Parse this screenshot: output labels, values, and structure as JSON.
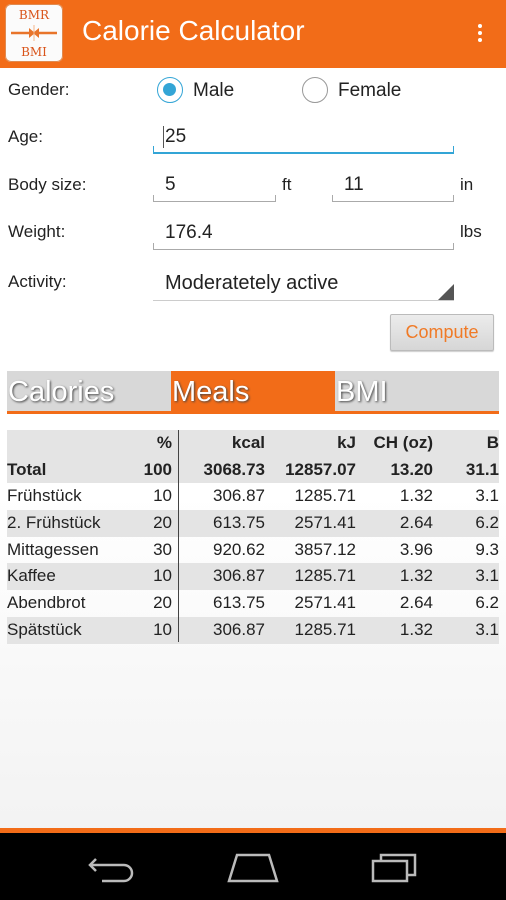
{
  "app": {
    "icon_top": "BMR",
    "icon_bottom": "BMI",
    "title": "Calorie Calculator",
    "accent": "#f26c18",
    "overflow_icon": "overflow-menu-icon"
  },
  "form": {
    "gender_label": "Gender:",
    "gender_options": [
      "Male",
      "Female"
    ],
    "gender_selected": "Male",
    "age_label": "Age:",
    "age_value": "25",
    "body_size_label": "Body size:",
    "feet_value": "5",
    "feet_unit": "ft",
    "inches_value": "11",
    "inches_unit": "in",
    "weight_label": "Weight:",
    "weight_value": "176.4",
    "weight_unit": "lbs",
    "activity_label": "Activity:",
    "activity_value": "Moderatetely active",
    "compute_label": "Compute"
  },
  "tabs": [
    {
      "label": "Calories",
      "active": false
    },
    {
      "label": "Meals",
      "active": true
    },
    {
      "label": "BMI",
      "active": false
    }
  ],
  "table": {
    "headers": [
      "",
      "%",
      "kcal",
      "kJ",
      "CH (oz)",
      "B"
    ],
    "total": [
      "Total",
      "100",
      "3068.73",
      "12857.07",
      "13.20",
      "31.1"
    ],
    "rows": [
      [
        "Frühstück",
        "10",
        "306.87",
        "1285.71",
        "1.32",
        "3.1"
      ],
      [
        "2. Frühstück",
        "20",
        "613.75",
        "2571.41",
        "2.64",
        "6.2"
      ],
      [
        "Mittagessen",
        "30",
        "920.62",
        "3857.12",
        "3.96",
        "9.3"
      ],
      [
        "Kaffee",
        "10",
        "306.87",
        "1285.71",
        "1.32",
        "3.1"
      ],
      [
        "Abendbrot",
        "20",
        "613.75",
        "2571.41",
        "2.64",
        "6.2"
      ],
      [
        "Spätstück",
        "10",
        "306.87",
        "1285.71",
        "1.32",
        "3.1"
      ]
    ]
  },
  "navbar": {
    "icons": [
      "back-icon",
      "home-icon",
      "recent-apps-icon"
    ]
  }
}
